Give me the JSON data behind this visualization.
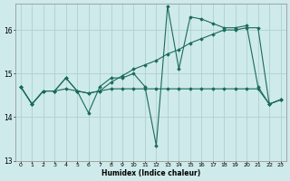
{
  "xlabel": "Humidex (Indice chaleur)",
  "background_color": "#ceeaea",
  "line_color": "#1a6b5a",
  "grid_color": "#afd0d0",
  "xlim": [
    -0.5,
    23.5
  ],
  "ylim": [
    13.0,
    16.6
  ],
  "yticks": [
    13,
    14,
    15,
    16
  ],
  "xtick_labels": [
    "0",
    "1",
    "2",
    "3",
    "4",
    "5",
    "6",
    "7",
    "8",
    "9",
    "10",
    "11",
    "12",
    "13",
    "14",
    "15",
    "16",
    "17",
    "18",
    "19",
    "20",
    "21",
    "22",
    "23"
  ],
  "series": [
    [
      14.7,
      14.3,
      14.6,
      14.6,
      14.9,
      14.6,
      14.1,
      14.7,
      14.9,
      14.9,
      15.0,
      14.7,
      13.35,
      16.55,
      15.1,
      16.3,
      16.25,
      16.15,
      16.05,
      16.05,
      16.1,
      14.7,
      14.3,
      14.4
    ],
    [
      14.7,
      14.3,
      14.6,
      14.6,
      14.9,
      14.6,
      14.55,
      14.6,
      14.8,
      14.95,
      15.1,
      15.2,
      15.3,
      15.45,
      15.55,
      15.7,
      15.8,
      15.9,
      16.0,
      16.0,
      16.05,
      16.05,
      14.3,
      14.4
    ],
    [
      14.7,
      14.3,
      14.6,
      14.6,
      14.65,
      14.6,
      14.55,
      14.6,
      14.65,
      14.65,
      14.65,
      14.65,
      14.65,
      14.65,
      14.65,
      14.65,
      14.65,
      14.65,
      14.65,
      14.65,
      14.65,
      14.65,
      14.3,
      14.4
    ]
  ]
}
